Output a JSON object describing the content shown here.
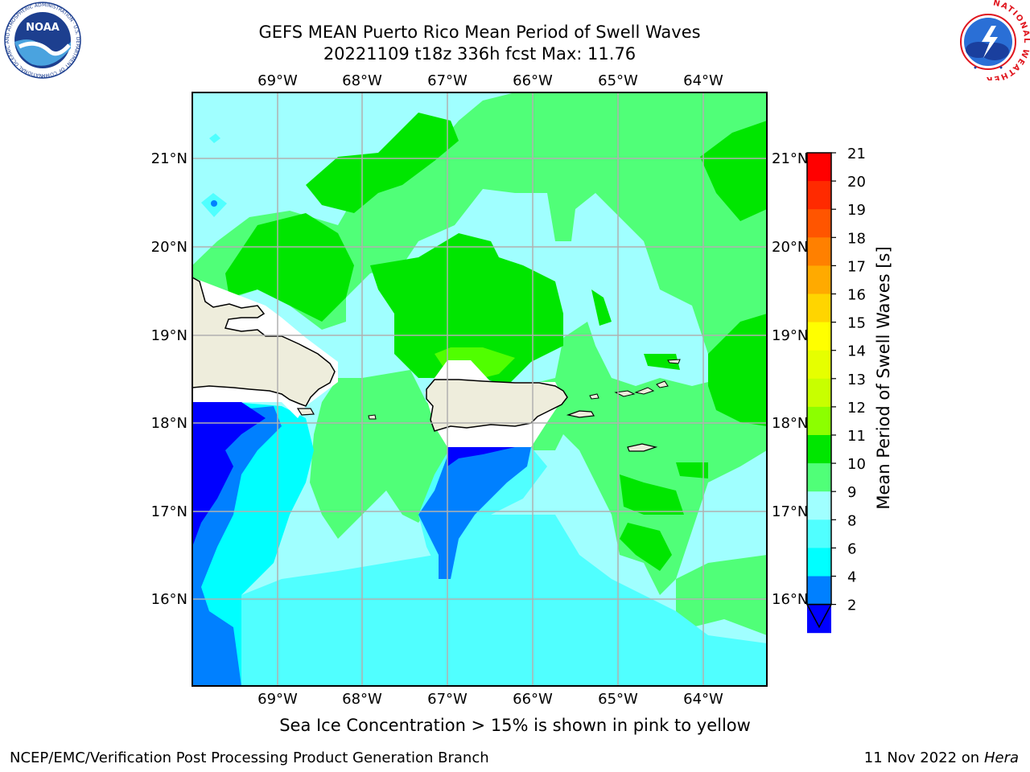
{
  "title": {
    "line1": "GEFS MEAN Puerto Rico Mean Period of Swell Waves",
    "line2": "20221109 t18z 336h fcst   Max: 11.76"
  },
  "logos": {
    "noaa_text": "NOAA",
    "noaa_ring_text": "NATIONAL OCEANIC AND ATMOSPHERIC ADMINISTRATION · U.S. DEPARTMENT OF COMMERCE",
    "nws_ring_text": "NATIONAL WEATHER SERVICE"
  },
  "map": {
    "lon_labels": [
      "69°W",
      "68°W",
      "67°W",
      "66°W",
      "65°W",
      "64°W"
    ],
    "lat_labels": [
      "21°N",
      "20°N",
      "19°N",
      "18°N",
      "17°N",
      "16°N"
    ]
  },
  "colorbar": {
    "label": "Mean Period of Swell Waves [s]",
    "ticks": [
      "21",
      "20",
      "19",
      "18",
      "17",
      "16",
      "15",
      "14",
      "13",
      "12",
      "11",
      "10",
      "9",
      "8",
      "6",
      "4",
      "2"
    ],
    "colors": [
      "#ff0000",
      "#ff2a00",
      "#ff5500",
      "#ff8000",
      "#ffaa00",
      "#ffd500",
      "#ffff00",
      "#e6ff00",
      "#c8ff00",
      "#8cff00",
      "#00e600",
      "#50ff78",
      "#a0ffff",
      "#50ffff",
      "#00ffff",
      "#0080ff",
      "#0000ff"
    ]
  },
  "note": "Sea Ice Concentration > 15% is shown in pink to yellow",
  "footer": {
    "left": "NCEP/EMC/Verification Post Processing Product Generation Branch",
    "date": "11 Nov 2022 on",
    "host": "Hera"
  }
}
